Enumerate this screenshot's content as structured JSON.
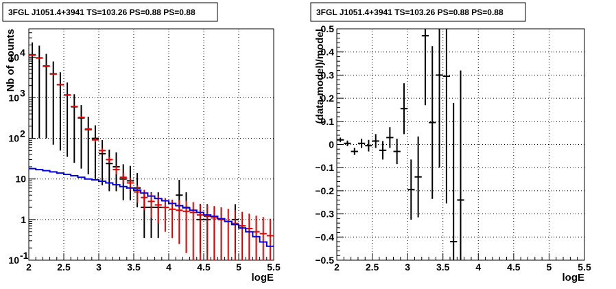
{
  "chart_data": [
    {
      "type": "scatter",
      "title": "3FGL J1051.4+3941 TS=103.26 PS=0.88 PS=0.88",
      "xlabel": "logE",
      "ylabel": "Nb of counts",
      "xlim": [
        2,
        5.5
      ],
      "ylim": [
        0.1,
        50000
      ],
      "y_scale": "log",
      "grid": true,
      "x_ticks": [
        {
          "v": 2,
          "label": "2"
        },
        {
          "v": 2.5,
          "label": "2.5"
        },
        {
          "v": 3,
          "label": "3"
        },
        {
          "v": 3.5,
          "label": "3.5"
        },
        {
          "v": 4,
          "label": "4"
        },
        {
          "v": 4.5,
          "label": "4.5"
        },
        {
          "v": 5,
          "label": "5"
        },
        {
          "v": 5.5,
          "label": "5.5"
        }
      ],
      "y_ticks": [
        {
          "v": 0.1,
          "base": "10",
          "exp": "-1"
        },
        {
          "v": 1,
          "base": "1",
          "exp": ""
        },
        {
          "v": 10,
          "base": "10",
          "exp": ""
        },
        {
          "v": 100,
          "base": "10",
          "exp": "2"
        },
        {
          "v": 1000,
          "base": "10",
          "exp": "3"
        },
        {
          "v": 10000,
          "base": "10",
          "exp": "4"
        }
      ],
      "colors": {
        "data": "#000000",
        "model": "#e00000",
        "background": "#0000e0"
      },
      "series": [
        {
          "role": "data",
          "x": [
            2.05,
            2.15,
            2.25,
            2.35,
            2.45,
            2.55,
            2.65,
            2.75,
            2.85,
            2.95,
            3.05,
            3.15,
            3.25,
            3.35,
            3.45,
            3.55,
            3.65,
            3.75,
            3.85,
            4.15,
            4.25,
            4.45,
            4.55,
            4.95
          ],
          "y": [
            11500,
            9600,
            6000,
            3900,
            2100,
            1170,
            600,
            320,
            165,
            100,
            42,
            24,
            20,
            10,
            9,
            6,
            2,
            2,
            2,
            4,
            2,
            1,
            1,
            1
          ],
          "yerr_low": [
            11400,
            9500,
            5900,
            3830,
            2050,
            1135,
            575,
            302,
            152,
            90,
            35,
            19,
            15,
            7,
            6,
            4,
            1.65,
            1.65,
            1.65,
            2.1,
            1.65,
            0.85,
            0.85,
            0.85
          ],
          "yerr_high": [
            11650,
            9700,
            6080,
            3960,
            2150,
            1205,
            625,
            340,
            178,
            110,
            49,
            29,
            25,
            13,
            12,
            8,
            2.7,
            2.7,
            2.7,
            5.5,
            2.7,
            1.4,
            1.4,
            1.4
          ]
        },
        {
          "role": "model",
          "x": [
            2.05,
            2.15,
            2.25,
            2.35,
            2.45,
            2.55,
            2.65,
            2.75,
            2.85,
            2.95,
            3.05,
            3.15,
            3.25,
            3.35,
            3.45,
            3.55,
            3.65,
            3.75,
            3.85,
            3.95,
            4.05,
            4.15,
            4.25,
            4.35,
            4.45,
            4.55,
            4.65,
            4.75,
            4.85,
            4.95,
            5.05,
            5.15,
            5.25,
            5.35,
            5.45
          ],
          "y": [
            11300,
            9500,
            6100,
            3850,
            2100,
            1180,
            610,
            330,
            170,
            92,
            50,
            30,
            17,
            11,
            8,
            4.8,
            3.5,
            2.8,
            2.3,
            2,
            1.8,
            1.7,
            1.6,
            1.5,
            1.3,
            1.2,
            1.1,
            1,
            0.9,
            0.8,
            0.7,
            0.6,
            0.5,
            0.45,
            0.4
          ],
          "yerr_low": [
            110,
            100,
            80,
            65,
            45,
            35,
            25,
            18,
            13,
            10,
            7,
            5,
            4,
            3,
            2.8,
            2.2,
            1.8,
            1.7,
            1.5,
            1.5,
            1.45,
            1.45,
            1.45,
            1.4,
            1.25,
            1.15,
            1.06,
            0.98,
            0.88,
            0.78,
            0.69,
            0.59,
            0.49,
            0.445,
            0.395
          ],
          "yerr_high": [
            110,
            100,
            80,
            65,
            45,
            35,
            25,
            18,
            13,
            10,
            7,
            5,
            4,
            3,
            2.8,
            2.2,
            1.9,
            1.7,
            1.5,
            1.4,
            1.3,
            1.3,
            1.3,
            1.2,
            1.15,
            1.1,
            1.05,
            1,
            0.95,
            0.9,
            0.85,
            0.8,
            0.75,
            0.7,
            0.65
          ]
        },
        {
          "role": "background",
          "step_edges": [
            2.0,
            2.1,
            2.2,
            2.3,
            2.4,
            2.5,
            2.6,
            2.7,
            2.8,
            2.9,
            3.0,
            3.1,
            3.2,
            3.3,
            3.4,
            3.5,
            3.6,
            3.7,
            3.8,
            3.9,
            4.0,
            4.1,
            4.2,
            4.3,
            4.4,
            4.5,
            4.6,
            4.7,
            4.8,
            4.9,
            5.0,
            5.1,
            5.2,
            5.3,
            5.4,
            5.5
          ],
          "y": [
            18,
            17,
            16,
            15,
            14,
            13,
            12,
            11,
            10,
            9.5,
            8.8,
            8,
            7.2,
            6.5,
            6,
            5.3,
            4.5,
            3.8,
            3.3,
            2.9,
            2.5,
            2.2,
            1.95,
            1.7,
            1.5,
            1.3,
            1.2,
            1.05,
            0.9,
            0.75,
            0.62,
            0.5,
            0.38,
            0.28,
            0.22
          ]
        }
      ]
    },
    {
      "type": "scatter",
      "title": "3FGL J1051.4+3941 TS=103.26 PS=0.88 PS=0.88",
      "xlabel": "logE",
      "ylabel": "(data-model)/model",
      "xlim": [
        2,
        5.5
      ],
      "ylim": [
        -0.5,
        0.5
      ],
      "grid": true,
      "x_ticks": [
        {
          "v": 2,
          "label": "2"
        },
        {
          "v": 2.5,
          "label": "2.5"
        },
        {
          "v": 3,
          "label": "3"
        },
        {
          "v": 3.5,
          "label": "3.5"
        },
        {
          "v": 4,
          "label": "4"
        },
        {
          "v": 4.5,
          "label": "4.5"
        },
        {
          "v": 5,
          "label": "5"
        },
        {
          "v": 5.5,
          "label": "5.5"
        }
      ],
      "y_ticks": [
        {
          "v": -0.5,
          "label": "−0.5"
        },
        {
          "v": -0.4,
          "label": "−0.4"
        },
        {
          "v": -0.3,
          "label": "−0.3"
        },
        {
          "v": -0.2,
          "label": "−0.2"
        },
        {
          "v": -0.1,
          "label": "−0.1"
        },
        {
          "v": 0,
          "label": "0"
        },
        {
          "v": 0.1,
          "label": "0.1"
        },
        {
          "v": 0.2,
          "label": "0.2"
        },
        {
          "v": 0.3,
          "label": "0.3"
        },
        {
          "v": 0.4,
          "label": "0.4"
        },
        {
          "v": 0.5,
          "label": "0.5"
        }
      ],
      "colors": {
        "points": "#000000"
      },
      "series": [
        {
          "role": "residuals",
          "x": [
            2.05,
            2.15,
            2.25,
            2.35,
            2.45,
            2.55,
            2.65,
            2.75,
            2.85,
            2.95,
            3.05,
            3.15,
            3.25,
            3.35,
            3.45,
            3.55,
            3.65,
            3.75
          ],
          "y": [
            0.02,
            0.005,
            -0.03,
            0.005,
            -0.005,
            0.015,
            -0.025,
            0.03,
            -0.03,
            0.155,
            -0.195,
            -0.14,
            0.47,
            0.095,
            0.3,
            0.295,
            -0.42,
            -0.24
          ],
          "yerr": [
            0.01,
            0.012,
            0.015,
            0.02,
            0.025,
            0.03,
            0.04,
            0.045,
            0.055,
            0.11,
            0.13,
            0.175,
            0.3,
            0.33,
            0.4,
            0.55,
            0.6,
            0.56
          ]
        }
      ]
    }
  ]
}
